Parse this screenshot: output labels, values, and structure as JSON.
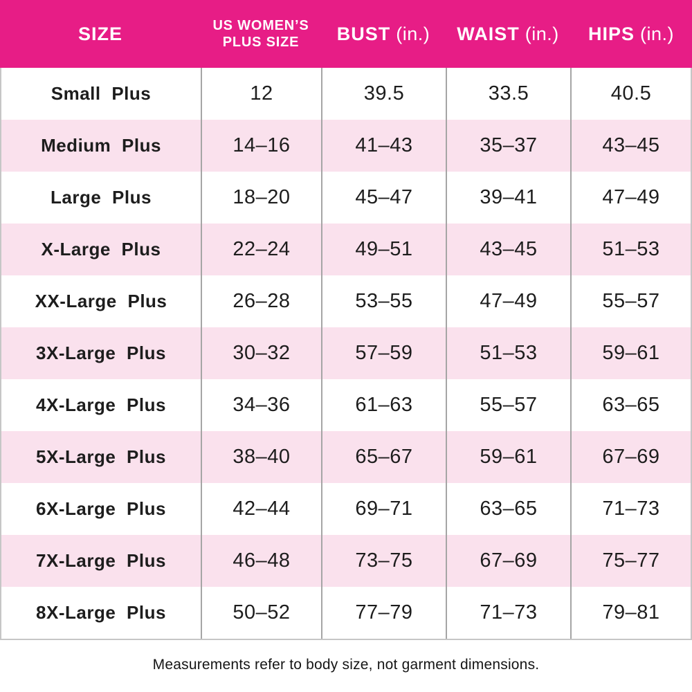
{
  "colors": {
    "header_bg": "#E71D86",
    "header_text": "#FFFFFF",
    "row_bg": "#FFFFFF",
    "row_alt_bg": "#FAE1ED",
    "text": "#1D1D1D",
    "divider": "#A5A5A5",
    "outer_border": "#C6C6C6"
  },
  "table": {
    "header": {
      "size": "SIZE",
      "us_plus": [
        "US WOMEN’S",
        "PLUS SIZE"
      ],
      "bust": {
        "label": "BUST",
        "unit": "(in.)"
      },
      "waist": {
        "label": "WAIST",
        "unit": "(in.)"
      },
      "hips": {
        "label": "HIPS",
        "unit": "(in.)"
      }
    }
  },
  "footnote": "Measurements refer to body size, not garment dimensions.",
  "chart_data": {
    "type": "table",
    "columns": [
      "SIZE",
      "US WOMEN'S PLUS SIZE",
      "BUST (in.)",
      "WAIST (in.)",
      "HIPS (in.)"
    ],
    "rows": [
      [
        "Small Plus",
        "12",
        "39.5",
        "33.5",
        "40.5"
      ],
      [
        "Medium Plus",
        "14–16",
        "41–43",
        "35–37",
        "43–45"
      ],
      [
        "Large Plus",
        "18–20",
        "45–47",
        "39–41",
        "47–49"
      ],
      [
        "X-Large Plus",
        "22–24",
        "49–51",
        "43–45",
        "51–53"
      ],
      [
        "XX-Large Plus",
        "26–28",
        "53–55",
        "47–49",
        "55–57"
      ],
      [
        "3X-Large Plus",
        "30–32",
        "57–59",
        "51–53",
        "59–61"
      ],
      [
        "4X-Large Plus",
        "34–36",
        "61–63",
        "55–57",
        "63–65"
      ],
      [
        "5X-Large Plus",
        "38–40",
        "65–67",
        "59–61",
        "67–69"
      ],
      [
        "6X-Large Plus",
        "42–44",
        "69–71",
        "63–65",
        "71–73"
      ],
      [
        "7X-Large Plus",
        "46–48",
        "73–75",
        "67–69",
        "75–77"
      ],
      [
        "8X-Large Plus",
        "50–52",
        "77–79",
        "71–73",
        "79–81"
      ]
    ],
    "layout": {
      "striped": true,
      "header_position": "top"
    }
  }
}
